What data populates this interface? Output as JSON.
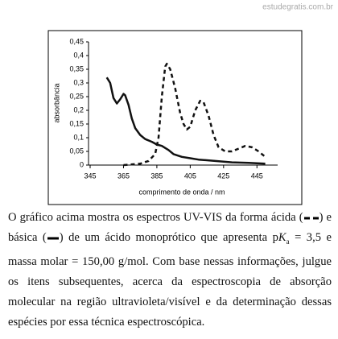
{
  "watermark": "estudegratis.com.br",
  "chart_data": {
    "type": "line",
    "xlabel": "comprimento de onda / nm",
    "ylabel": "absorbância",
    "xlim": [
      345,
      455
    ],
    "xticks": [
      345,
      365,
      385,
      405,
      425,
      445
    ],
    "ylim": [
      0,
      0.45
    ],
    "yticks": [
      0,
      {
        "value": 0.05,
        "label": "0,05"
      },
      {
        "value": 0.1,
        "label": "0,1"
      },
      {
        "value": 0.15,
        "label": "0,15"
      },
      {
        "value": 0.2,
        "label": "0,2"
      },
      {
        "value": 0.25,
        "label": "0,25"
      },
      {
        "value": 0.3,
        "label": "0,3"
      },
      {
        "value": 0.35,
        "label": "0,35"
      },
      {
        "value": 0.4,
        "label": "0,4"
      },
      {
        "value": 0.45,
        "label": "0,45"
      }
    ],
    "grid": false,
    "series": [
      {
        "color": "#111111",
        "dash": false,
        "x": [
          355,
          357,
          359,
          361,
          363,
          365,
          366,
          368,
          370,
          372,
          375,
          378,
          382,
          385,
          388,
          392,
          395,
          400,
          405,
          410,
          420,
          430,
          440,
          450
        ],
        "values": [
          0.32,
          0.3,
          0.245,
          0.225,
          0.24,
          0.26,
          0.255,
          0.22,
          0.17,
          0.135,
          0.11,
          0.095,
          0.085,
          0.075,
          0.07,
          0.055,
          0.04,
          0.03,
          0.025,
          0.02,
          0.015,
          0.01,
          0.008,
          0.005
        ]
      },
      {
        "color": "#111111",
        "dash": true,
        "x": [
          365,
          375,
          380,
          384,
          386,
          388,
          390,
          391,
          393,
          396,
          399,
          401,
          403,
          405,
          408,
          411,
          413,
          416,
          419,
          422,
          426,
          430,
          434,
          438,
          442,
          446,
          450
        ],
        "values": [
          0,
          0.005,
          0.015,
          0.04,
          0.1,
          0.25,
          0.36,
          0.37,
          0.35,
          0.28,
          0.19,
          0.15,
          0.13,
          0.14,
          0.2,
          0.235,
          0.23,
          0.18,
          0.11,
          0.065,
          0.05,
          0.05,
          0.06,
          0.07,
          0.065,
          0.05,
          0.03
        ]
      }
    ]
  },
  "paragraph": [
    "O gráfico acima mostra os espectros UV-VIS da forma ácida (",
    ") e básica (",
    ") de um ácido monoprótico que apresenta p",
    "K",
    "a",
    " = 3,5 e massa molar = 150,00 g/mol. Com base nessas informações, julgue os itens subsequentes, acerca da espectroscopia de absorção molecular na região ultravioleta/visível e da determinação dessas espécies por essa técnica espectroscópica."
  ]
}
